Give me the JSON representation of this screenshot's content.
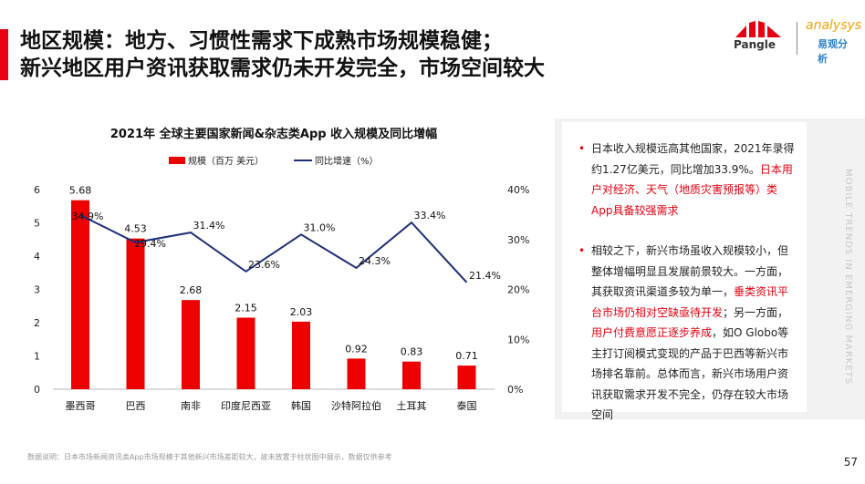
{
  "header": {
    "title_line1": "地区规模：地方、习惯性需求下成熟市场规模稳健；",
    "title_line2": "新兴地区用户资讯获取需求仍未开发完全，市场空间较大"
  },
  "logos": {
    "pangle": "Pangle",
    "analysys": "analysys",
    "analysys_cn": "易观分析"
  },
  "chart_data": {
    "type": "bar",
    "title": "2021年 全球主要国家新闻&杂志类App 收入规模及同比增幅",
    "categories": [
      "墨西哥",
      "巴西",
      "南非",
      "印度尼西亚",
      "韩国",
      "沙特阿拉伯",
      "土耳其",
      "泰国"
    ],
    "series": [
      {
        "name": "规模（百万 美元）",
        "type": "bar",
        "color": "#ee0000",
        "values": [
          5.68,
          4.53,
          2.68,
          2.15,
          2.03,
          0.92,
          0.83,
          0.71
        ],
        "labels": [
          "5.68",
          "4.53",
          "2.68",
          "2.15",
          "2.03",
          "0.92",
          "0.83",
          "0.71"
        ]
      },
      {
        "name": "同比增速（%）",
        "type": "line",
        "color": "#1f2f7a",
        "values": [
          34.9,
          29.4,
          31.4,
          23.6,
          31.0,
          24.3,
          33.4,
          21.4
        ],
        "labels": [
          "34.9%",
          "29.4%",
          "31.4%",
          "23.6%",
          "31.0%",
          "24.3%",
          "33.4%",
          "21.4%"
        ]
      }
    ],
    "ylim": [
      0,
      6
    ],
    "yticks": [
      "0",
      "1",
      "2",
      "3",
      "4",
      "5",
      "6"
    ],
    "y2lim": [
      0,
      40
    ],
    "y2ticks": [
      "0%",
      "10%",
      "20%",
      "30%",
      "40%"
    ],
    "legend": "top-left"
  },
  "card": {
    "p1_a": "日本收入规模远高其他国家，2021年录得约1.27亿美元，同比增加33.9%。",
    "p1_b": "日本用户对经济、天气（地质灾害预报等）类App具备较强需求",
    "p2_a": "相较之下，新兴市场虽收入规模较小，但整体增幅明显且发展前景较大。一方面，其获取资讯渠道多较为单一，",
    "p2_b": "垂类资讯平台市场仍相对空缺亟待开发",
    "p2_c": "；另一方面，",
    "p2_d": "用户付费意愿正逐步养成",
    "p2_e": "，如O  Globo等主打订阅模式变现的产品于巴西等新兴市场排名靠前。总体而言，新兴市场用户资讯获取需求开发不完全，仍存在较大市场空间",
    "bullet": "•"
  },
  "side_text": "MOBILE TRENDS IN EMERGING MARKETS",
  "footnote": "数据说明：日本市场新闻资讯类App市场规模于其他新兴市场差距较大，故未放置于柱状图中展示，数据仅供参考",
  "page_number": "57"
}
